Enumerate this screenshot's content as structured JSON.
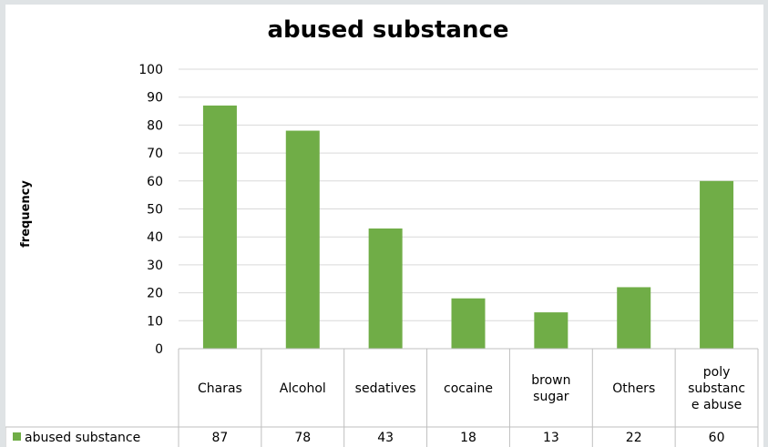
{
  "chart_data": {
    "type": "bar",
    "title": "abused substance",
    "xlabel": "",
    "ylabel": "frequency",
    "ylim": [
      0,
      100
    ],
    "yticks": [
      0,
      10,
      20,
      30,
      40,
      50,
      60,
      70,
      80,
      90,
      100
    ],
    "categories": [
      [
        "Charas"
      ],
      [
        "Alcohol"
      ],
      [
        "sedatives"
      ],
      [
        "cocaine"
      ],
      [
        "brown",
        "sugar"
      ],
      [
        "Others"
      ],
      [
        "poly",
        "substanc",
        "e abuse"
      ]
    ],
    "series": [
      {
        "name": "abused substance",
        "color": "#70ad47",
        "values": [
          87,
          78,
          43,
          18,
          13,
          22,
          60
        ]
      }
    ],
    "grid": true,
    "legend": "data-table"
  }
}
